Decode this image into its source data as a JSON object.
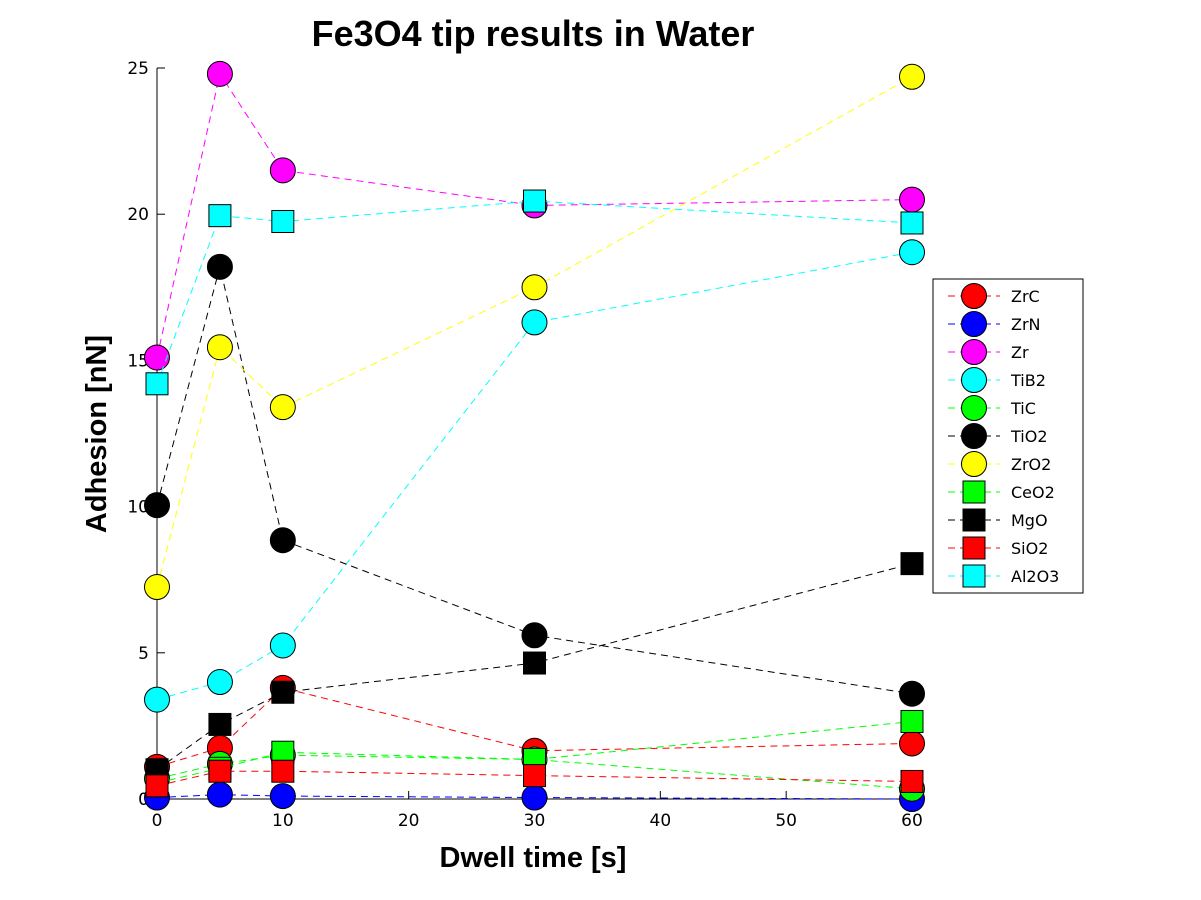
{
  "chart_data": {
    "type": "line",
    "title": "Fe3O4 tip results in Water",
    "xlabel": "Dwell time [s]",
    "ylabel": "Adhesion [nN]",
    "x": [
      0,
      5,
      10,
      30,
      60
    ],
    "xlim": [
      0,
      60
    ],
    "ylim": [
      0,
      25
    ],
    "xticks": [
      0,
      10,
      20,
      30,
      40,
      50,
      60
    ],
    "yticks": [
      0,
      5,
      10,
      15,
      20,
      25
    ],
    "grid": false,
    "legend_position": "right",
    "series": [
      {
        "name": "ZrC",
        "marker": "circle",
        "color": "#ff0000",
        "values": [
          1.1,
          1.75,
          3.8,
          1.65,
          1.9
        ]
      },
      {
        "name": "ZrN",
        "marker": "circle",
        "color": "#0000ff",
        "values": [
          0.05,
          0.15,
          0.1,
          0.05,
          0.0
        ]
      },
      {
        "name": "Zr",
        "marker": "circle",
        "color": "#ff00ff",
        "values": [
          15.1,
          24.8,
          21.5,
          20.3,
          20.5
        ]
      },
      {
        "name": "TiB2",
        "marker": "circle",
        "color": "#00ffff",
        "values": [
          3.4,
          4.0,
          5.25,
          16.3,
          18.7
        ]
      },
      {
        "name": "TiC",
        "marker": "circle",
        "color": "#00ff00",
        "values": [
          0.7,
          1.2,
          1.5,
          1.35,
          0.35
        ]
      },
      {
        "name": "TiO2",
        "marker": "circle",
        "color": "#000000",
        "values": [
          10.05,
          18.2,
          8.85,
          5.6,
          3.6
        ]
      },
      {
        "name": "ZrO2",
        "marker": "circle",
        "color": "#ffff00",
        "values": [
          7.25,
          15.45,
          13.4,
          17.5,
          24.7
        ]
      },
      {
        "name": "CeO2",
        "marker": "square",
        "color": "#00ff00",
        "values": [
          0.55,
          1.05,
          1.6,
          1.35,
          2.65
        ]
      },
      {
        "name": "MgO",
        "marker": "square",
        "color": "#000000",
        "values": [
          1.0,
          2.55,
          3.65,
          4.65,
          8.05
        ]
      },
      {
        "name": "SiO2",
        "marker": "square",
        "color": "#ff0000",
        "values": [
          0.45,
          0.95,
          0.95,
          0.8,
          0.6
        ]
      },
      {
        "name": "Al2O3",
        "marker": "square",
        "color": "#00ffff",
        "values": [
          14.2,
          19.95,
          19.75,
          20.45,
          19.7
        ]
      }
    ]
  }
}
